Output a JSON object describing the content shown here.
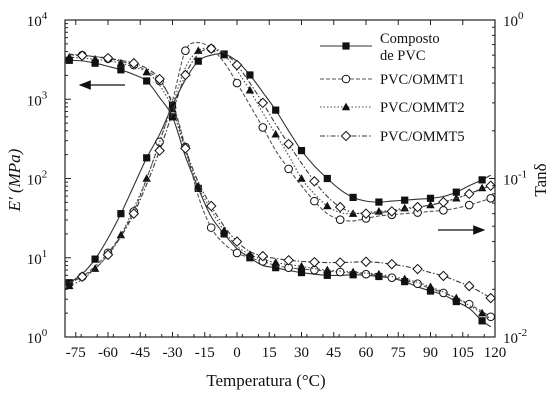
{
  "chart_data": {
    "type": "line",
    "xlabel": "Temperatura (°C)",
    "ylabel_left": "E' (MPa)",
    "ylabel_right": "Tanδ",
    "xlim": [
      -80,
      120
    ],
    "x_ticks": [
      -75,
      -60,
      -45,
      -30,
      -15,
      0,
      15,
      30,
      45,
      60,
      75,
      90,
      105,
      120
    ],
    "ylim_left": [
      1,
      10000
    ],
    "ylim_right": [
      0.01,
      1
    ],
    "y_left_scale": "log",
    "y_right_scale": "log",
    "y_left_ticks": [
      {
        "base": "10",
        "exp": "0",
        "value": 1
      },
      {
        "base": "10",
        "exp": "1",
        "value": 10
      },
      {
        "base": "10",
        "exp": "2",
        "value": 100
      },
      {
        "base": "10",
        "exp": "3",
        "value": 1000
      },
      {
        "base": "10",
        "exp": "4",
        "value": 10000
      }
    ],
    "y_right_ticks": [
      {
        "base": "10",
        "exp": "-2",
        "value": 0.01
      },
      {
        "base": "10",
        "exp": "-1",
        "value": 0.1
      },
      {
        "base": "10",
        "exp": "0",
        "value": 1
      }
    ],
    "legend_position": "top-right",
    "legend": [
      {
        "label": "Composto",
        "label2": "de PVC",
        "marker": "square",
        "dash": "solid"
      },
      {
        "label": "PVC/OMMT1",
        "marker": "circle",
        "dash": "dashed"
      },
      {
        "label": "PVC/OMMT2",
        "marker": "triangle",
        "dash": "dotted"
      },
      {
        "label": "PVC/OMMT5",
        "marker": "diamond",
        "dash": "dashdot"
      }
    ],
    "series": [
      {
        "name": "Composto de PVC",
        "marker": "square",
        "dash": "solid",
        "E_modulus": [
          [
            -78,
            3100
          ],
          [
            -72,
            3050
          ],
          [
            -66,
            2850
          ],
          [
            -60,
            2600
          ],
          [
            -54,
            2350
          ],
          [
            -48,
            2050
          ],
          [
            -42,
            1700
          ],
          [
            -36,
            1050
          ],
          [
            -30,
            600
          ],
          [
            -24,
            190
          ],
          [
            -18,
            75
          ],
          [
            -12,
            33
          ],
          [
            -6,
            20
          ],
          [
            0,
            13
          ],
          [
            6,
            10
          ],
          [
            12,
            8
          ],
          [
            18,
            7.5
          ],
          [
            24,
            6.9
          ],
          [
            30,
            6.5
          ],
          [
            36,
            6.2
          ],
          [
            42,
            6
          ],
          [
            48,
            6
          ],
          [
            54,
            6.1
          ],
          [
            60,
            6
          ],
          [
            66,
            5.8
          ],
          [
            72,
            5.5
          ],
          [
            78,
            5
          ],
          [
            84,
            4.3
          ],
          [
            90,
            3.8
          ],
          [
            96,
            3.4
          ],
          [
            102,
            2.8
          ],
          [
            108,
            2.3
          ],
          [
            114,
            1.6
          ],
          [
            118,
            1.35
          ]
        ],
        "tan_delta": [
          [
            -78,
            0.022
          ],
          [
            -72,
            0.025
          ],
          [
            -66,
            0.031
          ],
          [
            -60,
            0.042
          ],
          [
            -54,
            0.06
          ],
          [
            -48,
            0.09
          ],
          [
            -42,
            0.135
          ],
          [
            -36,
            0.19
          ],
          [
            -30,
            0.29
          ],
          [
            -24,
            0.42
          ],
          [
            -18,
            0.55
          ],
          [
            -12,
            0.6
          ],
          [
            -6,
            0.61
          ],
          [
            0,
            0.55
          ],
          [
            6,
            0.45
          ],
          [
            12,
            0.35
          ],
          [
            18,
            0.27
          ],
          [
            24,
            0.2
          ],
          [
            30,
            0.15
          ],
          [
            36,
            0.12
          ],
          [
            42,
            0.1
          ],
          [
            48,
            0.085
          ],
          [
            54,
            0.076
          ],
          [
            60,
            0.072
          ],
          [
            66,
            0.071
          ],
          [
            72,
            0.072
          ],
          [
            78,
            0.073
          ],
          [
            84,
            0.074
          ],
          [
            90,
            0.075
          ],
          [
            96,
            0.077
          ],
          [
            102,
            0.082
          ],
          [
            108,
            0.09
          ],
          [
            114,
            0.098
          ],
          [
            118,
            0.105
          ]
        ]
      },
      {
        "name": "PVC/OMMT1",
        "marker": "circle",
        "dash": "dashed",
        "E_modulus": [
          [
            -78,
            3700
          ],
          [
            -72,
            3600
          ],
          [
            -66,
            3450
          ],
          [
            -60,
            3250
          ],
          [
            -54,
            3000
          ],
          [
            -48,
            2700
          ],
          [
            -42,
            2300
          ],
          [
            -36,
            1700
          ],
          [
            -30,
            900
          ],
          [
            -24,
            250
          ],
          [
            -18,
            60
          ],
          [
            -12,
            24
          ],
          [
            -6,
            15
          ],
          [
            0,
            11.5
          ],
          [
            6,
            10
          ],
          [
            12,
            9
          ],
          [
            18,
            8
          ],
          [
            24,
            7.5
          ],
          [
            30,
            7.2
          ],
          [
            36,
            7
          ],
          [
            42,
            6.8
          ],
          [
            48,
            6.6
          ],
          [
            54,
            6.4
          ],
          [
            60,
            6.2
          ],
          [
            66,
            6
          ],
          [
            72,
            5.6
          ],
          [
            78,
            5.2
          ],
          [
            84,
            4.7
          ],
          [
            90,
            4.1
          ],
          [
            96,
            3.6
          ],
          [
            102,
            3.1
          ],
          [
            108,
            2.6
          ],
          [
            114,
            2.1
          ],
          [
            118,
            1.8
          ]
        ],
        "tan_delta": [
          [
            -78,
            0.022
          ],
          [
            -72,
            0.024
          ],
          [
            -66,
            0.028
          ],
          [
            -60,
            0.034
          ],
          [
            -54,
            0.044
          ],
          [
            -48,
            0.062
          ],
          [
            -42,
            0.1
          ],
          [
            -36,
            0.17
          ],
          [
            -30,
            0.31
          ],
          [
            -24,
            0.64
          ],
          [
            -18,
            0.72
          ],
          [
            -12,
            0.66
          ],
          [
            -6,
            0.54
          ],
          [
            0,
            0.4
          ],
          [
            6,
            0.29
          ],
          [
            12,
            0.21
          ],
          [
            18,
            0.15
          ],
          [
            24,
            0.115
          ],
          [
            30,
            0.09
          ],
          [
            36,
            0.072
          ],
          [
            42,
            0.06
          ],
          [
            48,
            0.055
          ],
          [
            54,
            0.054
          ],
          [
            60,
            0.056
          ],
          [
            66,
            0.058
          ],
          [
            72,
            0.059
          ],
          [
            78,
            0.06
          ],
          [
            84,
            0.061
          ],
          [
            90,
            0.062
          ],
          [
            96,
            0.063
          ],
          [
            102,
            0.065
          ],
          [
            108,
            0.068
          ],
          [
            114,
            0.072
          ],
          [
            118,
            0.075
          ]
        ]
      },
      {
        "name": "PVC/OMMT2",
        "marker": "triangle",
        "dash": "dotted",
        "E_modulus": [
          [
            -78,
            3400
          ],
          [
            -72,
            3300
          ],
          [
            -66,
            3200
          ],
          [
            -60,
            3050
          ],
          [
            -54,
            2850
          ],
          [
            -48,
            2550
          ],
          [
            -42,
            2200
          ],
          [
            -36,
            1500
          ],
          [
            -30,
            750
          ],
          [
            -24,
            220
          ],
          [
            -18,
            80
          ],
          [
            -12,
            40
          ],
          [
            -6,
            22
          ],
          [
            0,
            14
          ],
          [
            6,
            11
          ],
          [
            12,
            9.5
          ],
          [
            18,
            8.7
          ],
          [
            24,
            8.2
          ],
          [
            30,
            7.8
          ],
          [
            36,
            7.3
          ],
          [
            42,
            7
          ],
          [
            48,
            6.8
          ],
          [
            54,
            6.6
          ],
          [
            60,
            6.4
          ],
          [
            66,
            6.2
          ],
          [
            72,
            5.8
          ],
          [
            78,
            5.4
          ],
          [
            84,
            4.9
          ],
          [
            90,
            4.3
          ],
          [
            96,
            3.7
          ],
          [
            102,
            3.1
          ],
          [
            108,
            2.5
          ],
          [
            114,
            2
          ],
          [
            118,
            1.7
          ]
        ],
        "tan_delta": [
          [
            -78,
            0.021
          ],
          [
            -72,
            0.023
          ],
          [
            -66,
            0.027
          ],
          [
            -60,
            0.033
          ],
          [
            -54,
            0.044
          ],
          [
            -48,
            0.065
          ],
          [
            -42,
            0.1
          ],
          [
            -36,
            0.17
          ],
          [
            -30,
            0.29
          ],
          [
            -24,
            0.5
          ],
          [
            -18,
            0.64
          ],
          [
            -12,
            0.66
          ],
          [
            -6,
            0.6
          ],
          [
            0,
            0.48
          ],
          [
            6,
            0.36
          ],
          [
            12,
            0.26
          ],
          [
            18,
            0.19
          ],
          [
            24,
            0.14
          ],
          [
            30,
            0.1
          ],
          [
            36,
            0.08
          ],
          [
            42,
            0.067
          ],
          [
            48,
            0.061
          ],
          [
            54,
            0.06
          ],
          [
            60,
            0.061
          ],
          [
            66,
            0.062
          ],
          [
            72,
            0.063
          ],
          [
            78,
            0.065
          ],
          [
            84,
            0.066
          ],
          [
            90,
            0.068
          ],
          [
            96,
            0.071
          ],
          [
            102,
            0.075
          ],
          [
            108,
            0.08
          ],
          [
            114,
            0.087
          ],
          [
            118,
            0.092
          ]
        ]
      },
      {
        "name": "PVC/OMMT5",
        "marker": "diamond",
        "dash": "dashdot",
        "E_modulus": [
          [
            -78,
            3650
          ],
          [
            -72,
            3550
          ],
          [
            -66,
            3450
          ],
          [
            -60,
            3300
          ],
          [
            -54,
            3100
          ],
          [
            -48,
            2850
          ],
          [
            -42,
            2450
          ],
          [
            -36,
            1800
          ],
          [
            -30,
            850
          ],
          [
            -24,
            240
          ],
          [
            -18,
            90
          ],
          [
            -12,
            45
          ],
          [
            -6,
            25
          ],
          [
            0,
            16
          ],
          [
            6,
            12
          ],
          [
            12,
            10.5
          ],
          [
            18,
            9.8
          ],
          [
            24,
            9.3
          ],
          [
            30,
            9
          ],
          [
            36,
            8.8
          ],
          [
            42,
            8.7
          ],
          [
            48,
            8.7
          ],
          [
            54,
            8.8
          ],
          [
            60,
            8.9
          ],
          [
            66,
            8.7
          ],
          [
            72,
            8.3
          ],
          [
            78,
            7.8
          ],
          [
            84,
            7.2
          ],
          [
            90,
            6.5
          ],
          [
            96,
            5.9
          ],
          [
            102,
            5.1
          ],
          [
            108,
            4.4
          ],
          [
            114,
            3.6
          ],
          [
            118,
            3.1
          ]
        ],
        "tan_delta": [
          [
            -78,
            0.022
          ],
          [
            -72,
            0.024
          ],
          [
            -66,
            0.027
          ],
          [
            -60,
            0.033
          ],
          [
            -54,
            0.043
          ],
          [
            -48,
            0.06
          ],
          [
            -42,
            0.092
          ],
          [
            -36,
            0.15
          ],
          [
            -30,
            0.26
          ],
          [
            -24,
            0.45
          ],
          [
            -18,
            0.61
          ],
          [
            -12,
            0.66
          ],
          [
            -6,
            0.62
          ],
          [
            0,
            0.52
          ],
          [
            6,
            0.4
          ],
          [
            12,
            0.3
          ],
          [
            18,
            0.22
          ],
          [
            24,
            0.165
          ],
          [
            30,
            0.125
          ],
          [
            36,
            0.096
          ],
          [
            42,
            0.077
          ],
          [
            48,
            0.066
          ],
          [
            54,
            0.061
          ],
          [
            60,
            0.06
          ],
          [
            66,
            0.061
          ],
          [
            72,
            0.062
          ],
          [
            78,
            0.064
          ],
          [
            84,
            0.066
          ],
          [
            90,
            0.068
          ],
          [
            96,
            0.071
          ],
          [
            102,
            0.075
          ],
          [
            108,
            0.08
          ],
          [
            114,
            0.086
          ],
          [
            118,
            0.09
          ]
        ]
      }
    ],
    "annotations": [
      {
        "kind": "arrow",
        "direction": "left",
        "axis": "left"
      },
      {
        "kind": "arrow",
        "direction": "right",
        "axis": "right"
      }
    ]
  }
}
